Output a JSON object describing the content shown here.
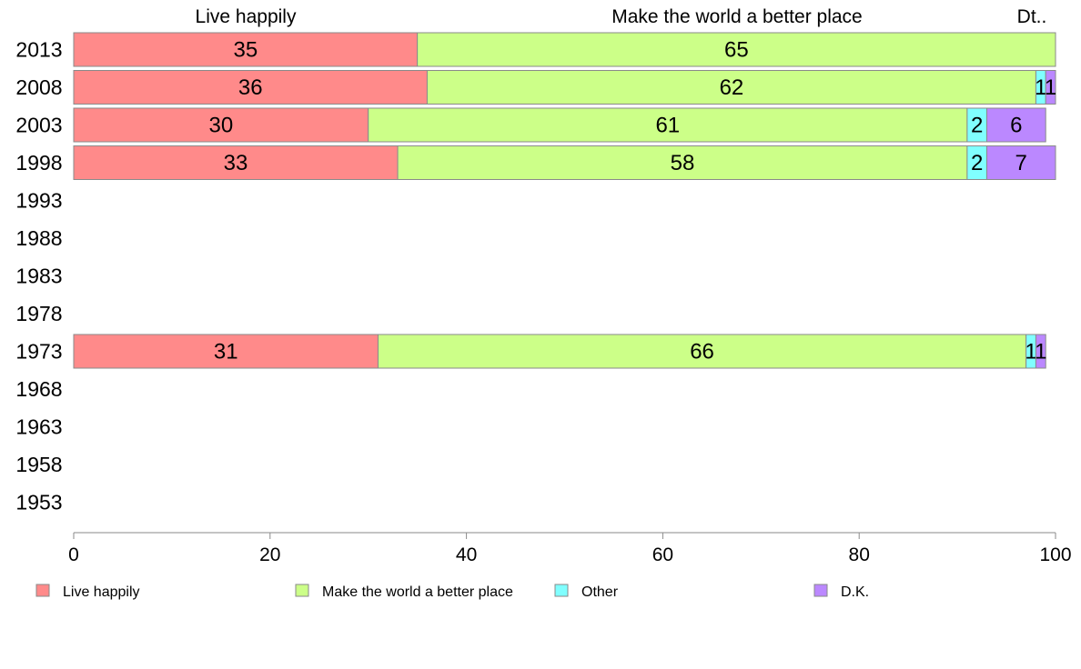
{
  "chart_data": {
    "type": "bar",
    "orientation": "horizontal",
    "stacked": true,
    "categories": [
      "2013",
      "2008",
      "2003",
      "1998",
      "1993",
      "1988",
      "1983",
      "1978",
      "1973",
      "1968",
      "1963",
      "1958",
      "1953"
    ],
    "series": [
      {
        "name": "Live happily",
        "color": "#ff8a8a",
        "values": [
          35,
          36,
          30,
          33,
          null,
          null,
          null,
          null,
          31,
          null,
          null,
          null,
          null
        ]
      },
      {
        "name": "Make the world a better place",
        "color": "#ccff88",
        "values": [
          65,
          62,
          61,
          58,
          null,
          null,
          null,
          null,
          66,
          null,
          null,
          null,
          null
        ]
      },
      {
        "name": "Other",
        "color": "#80ffff",
        "values": [
          0,
          1,
          2,
          2,
          null,
          null,
          null,
          null,
          1,
          null,
          null,
          null,
          null
        ]
      },
      {
        "name": "D.K.",
        "color": "#bb88ff",
        "values": [
          0,
          1,
          6,
          7,
          null,
          null,
          null,
          null,
          1,
          null,
          null,
          null,
          null
        ]
      }
    ],
    "top_labels": [
      "Live happily",
      "Make the world a better place",
      "Dt.."
    ],
    "xlim": [
      0,
      100
    ],
    "xticks": [
      0,
      20,
      40,
      60,
      80,
      100
    ],
    "grid": false,
    "legend_position": "bottom"
  }
}
